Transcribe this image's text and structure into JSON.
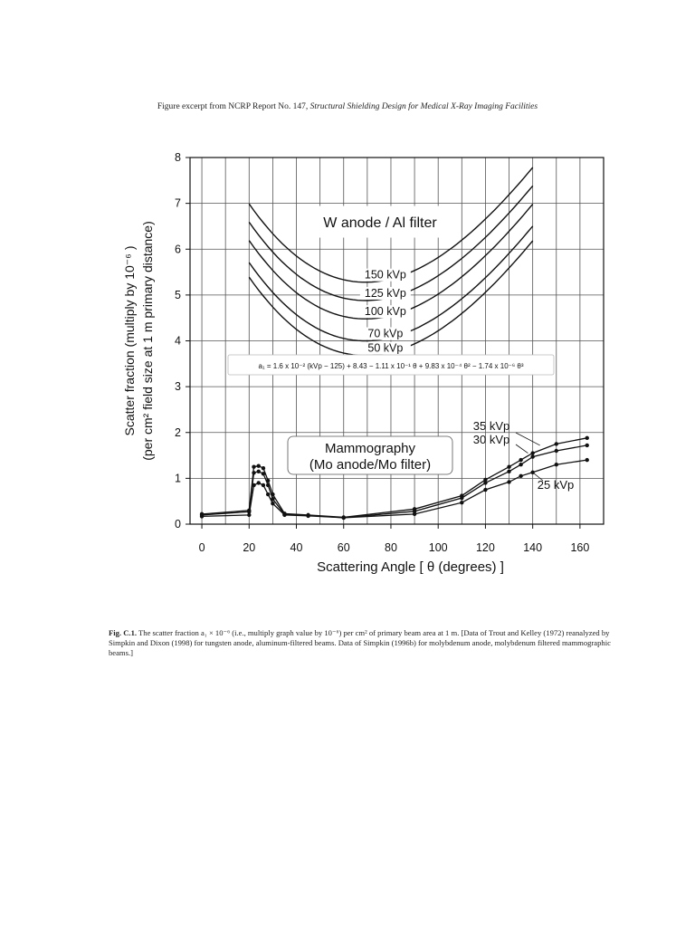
{
  "header": {
    "prefix": "Figure excerpt from NCRP Report No. 147,",
    "title": "Structural Shielding Design for Medical X-Ray Imaging Facilities"
  },
  "chart_data": {
    "type": "line",
    "xlabel": "Scattering Angle [ θ (degrees) ]",
    "ylabel_line1": "Scatter fraction (multiply by 10⁻⁶ )",
    "ylabel_line2": "(per cm² field size at 1 m primary distance)",
    "xlim": [
      -5,
      170
    ],
    "ylim": [
      0,
      8
    ],
    "xticks": [
      0,
      20,
      40,
      60,
      80,
      100,
      120,
      140,
      160
    ],
    "yticks": [
      0,
      1,
      2,
      3,
      4,
      5,
      6,
      7,
      8
    ],
    "grid": true,
    "annotations": {
      "w_title": "W anode / Al filter",
      "formula": "a₁ = 1.6 x 10⁻² (kVp − 125) + 8.43 − 1.11 x 10⁻¹ θ + 9.83 x 10⁻⁴ θ² − 1.74 x 10⁻⁶ θ³",
      "mammo_title_1": "Mammography",
      "mammo_title_2": "(Mo anode/Mo filter)"
    },
    "w_curves": [
      {
        "name": "150 kVp",
        "kvp": 150
      },
      {
        "name": "125 kVp",
        "kvp": 125
      },
      {
        "name": "100 kVp",
        "kvp": 100
      },
      {
        "name": "70 kVp",
        "kvp": 70
      },
      {
        "name": "50 kVp",
        "kvp": 50
      }
    ],
    "w_range": [
      20,
      140
    ],
    "mammo_series": [
      {
        "name": "35 kVp",
        "x": [
          0,
          20,
          22,
          24,
          26,
          28,
          30,
          35,
          45,
          60,
          90,
          110,
          120,
          130,
          135,
          140,
          150,
          163
        ],
        "y": [
          0.22,
          0.3,
          1.25,
          1.27,
          1.22,
          0.95,
          0.65,
          0.23,
          0.2,
          0.15,
          0.33,
          0.62,
          0.97,
          1.25,
          1.4,
          1.55,
          1.75,
          1.88
        ]
      },
      {
        "name": "30 kVp",
        "x": [
          0,
          20,
          22,
          24,
          26,
          28,
          30,
          35,
          45,
          60,
          90,
          110,
          120,
          130,
          135,
          140,
          150,
          163
        ],
        "y": [
          0.2,
          0.27,
          1.12,
          1.15,
          1.1,
          0.85,
          0.55,
          0.21,
          0.19,
          0.14,
          0.28,
          0.57,
          0.9,
          1.15,
          1.3,
          1.47,
          1.6,
          1.72
        ]
      },
      {
        "name": "25 kVp",
        "x": [
          0,
          20,
          22,
          24,
          26,
          28,
          30,
          35,
          45,
          60,
          90,
          110,
          120,
          130,
          135,
          140,
          150,
          163
        ],
        "y": [
          0.17,
          0.2,
          0.85,
          0.9,
          0.85,
          0.65,
          0.45,
          0.2,
          0.18,
          0.14,
          0.22,
          0.47,
          0.75,
          0.92,
          1.05,
          1.13,
          1.3,
          1.4
        ]
      }
    ],
    "mammo_labels": [
      "35 kVp",
      "30 kVp",
      "25 kVp"
    ]
  },
  "caption": {
    "label": "Fig. C.1.",
    "text": "The scatter fraction a₁ × 10⁻⁶ (i.e., multiply graph value by 10⁻⁶) per cm² of primary beam area at 1 m. [Data of Trout and Kelley (1972) reanalyzed by Simpkin and Dixon (1998) for tungsten anode, aluminum-filtered beams. Data of Simpkin (1996b) for molybdenum anode, molybdenum filtered mammographic beams.]"
  }
}
